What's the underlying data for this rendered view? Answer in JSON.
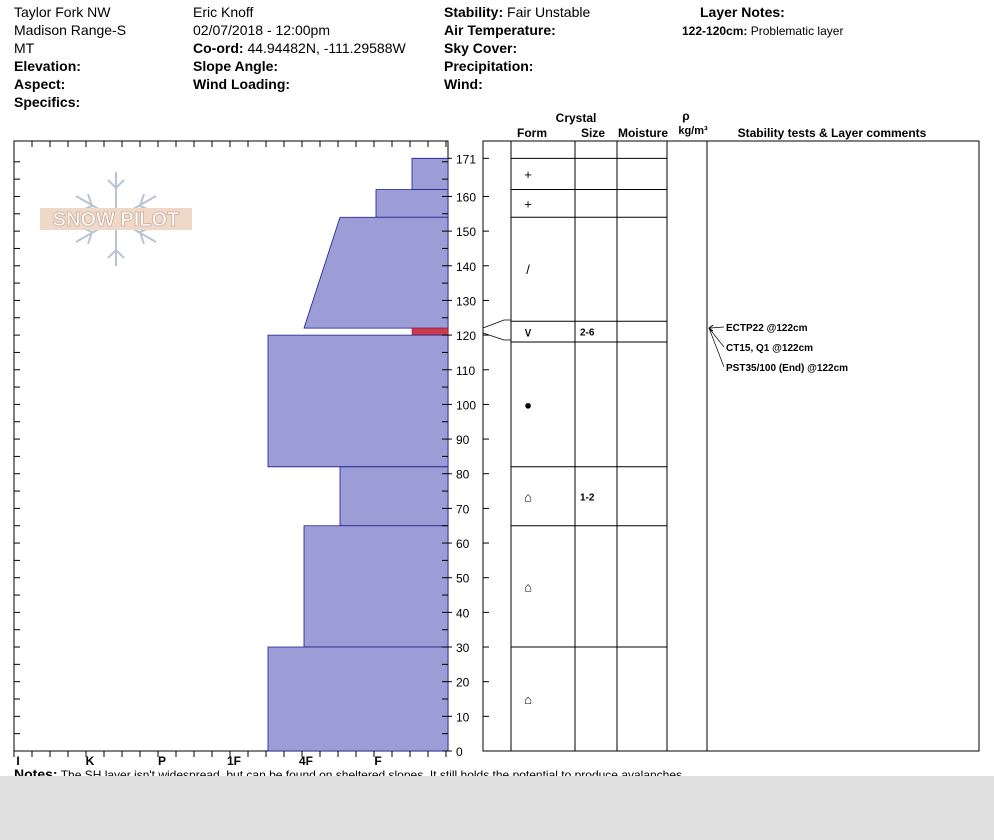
{
  "header": {
    "location": "Taylor Fork NW",
    "range": "Madison Range-S",
    "state": "MT",
    "elevation_label": "Elevation:",
    "aspect_label": "Aspect:",
    "specifics_label": "Specifics:",
    "observer": "Eric Knoff",
    "datetime": "02/07/2018 - 12:00pm",
    "coord_label": "Co-ord:",
    "coord_value": "44.94482N, -111.29588W",
    "slope_label": "Slope Angle:",
    "wind_loading_label": "Wind Loading:",
    "stability_label": "Stability:",
    "stability_value": "Fair Unstable",
    "air_temp_label": "Air Temperature:",
    "sky_label": "Sky Cover:",
    "precip_label": "Precipitation:",
    "wind_label": "Wind:",
    "layer_notes_label": "Layer Notes:",
    "layer_note_depth": "122-120cm:",
    "layer_note_text": "Problematic layer"
  },
  "logo_text": "SNOW PILOT",
  "columns": {
    "crystal": "Crystal",
    "form": "Form",
    "size": "Size",
    "moisture": "Moisture",
    "rho": "ρ",
    "density_unit": "kg/m³",
    "stability": "Stability tests & Layer comments"
  },
  "chart_data": {
    "type": "bar",
    "title": "",
    "ylabel": "",
    "ylim": [
      0,
      176
    ],
    "hardness_scale": [
      "I",
      "K",
      "P",
      "1F",
      "4F",
      "F"
    ],
    "y_ticks": [
      171,
      160,
      150,
      140,
      130,
      120,
      110,
      100,
      90,
      80,
      70,
      60,
      50,
      40,
      30,
      20,
      10,
      0
    ],
    "hardness_layers": [
      {
        "top": 171,
        "bottom": 162,
        "hardness": 0.5
      },
      {
        "top": 162,
        "bottom": 154,
        "hardness": 1.0
      },
      {
        "top": 154,
        "bottom": 122,
        "hardness_top": 1.5,
        "hardness_bottom": 2.0
      },
      {
        "top": 122,
        "bottom": 120,
        "hardness": 0.5,
        "highlight": true
      },
      {
        "top": 120,
        "bottom": 82,
        "hardness": 2.5
      },
      {
        "top": 82,
        "bottom": 65,
        "hardness": 1.5
      },
      {
        "top": 65,
        "bottom": 30,
        "hardness": 2.0
      },
      {
        "top": 30,
        "bottom": 0,
        "hardness": 2.5
      }
    ],
    "layer_boundaries": [
      171,
      162,
      154,
      124,
      118,
      82,
      65,
      30
    ],
    "profile_layers": [
      {
        "top": 171,
        "bottom": 162,
        "form": "+",
        "size": ""
      },
      {
        "top": 162,
        "bottom": 154,
        "form": "+",
        "size": ""
      },
      {
        "top": 154,
        "bottom": 124,
        "form": "/",
        "size": ""
      },
      {
        "top": 124,
        "bottom": 118,
        "form": "∨",
        "size": "2-6"
      },
      {
        "top": 118,
        "bottom": 82,
        "form": "●",
        "size": ""
      },
      {
        "top": 82,
        "bottom": 65,
        "form": "⌂",
        "size": "1-2"
      },
      {
        "top": 65,
        "bottom": 30,
        "form": "⌂",
        "size": ""
      },
      {
        "top": 30,
        "bottom": 0,
        "form": "⌂",
        "size": ""
      }
    ],
    "stability_tests": [
      {
        "label": "ECTP22 @122cm",
        "depth": 122
      },
      {
        "label": "CT15, Q1 @122cm",
        "depth": 122
      },
      {
        "label": "PST35/100 (End) @122cm",
        "depth": 122
      }
    ]
  },
  "notes": {
    "label": "Notes:",
    "text": "The SH layer isn't widespread, but can be found on sheltered slopes. It still holds the potential to produce avalanches."
  }
}
